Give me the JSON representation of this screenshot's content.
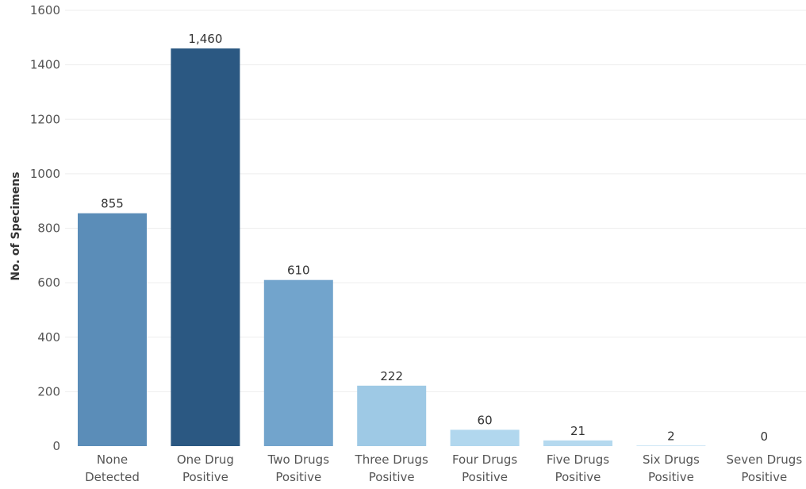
{
  "chart_data": {
    "type": "bar",
    "title": "",
    "xlabel": "",
    "ylabel": "No. of Specimens",
    "ylim": [
      0,
      1600
    ],
    "yticks": [
      0,
      200,
      400,
      600,
      800,
      1000,
      1200,
      1400,
      1600
    ],
    "ytick_labels": [
      "0",
      "200",
      "400",
      "600",
      "800",
      "1000",
      "1200",
      "1400",
      "1600"
    ],
    "grid": true,
    "legend": "none",
    "categories": [
      [
        "None",
        "Detected"
      ],
      [
        "One Drug",
        "Positive"
      ],
      [
        "Two Drugs",
        "Positive"
      ],
      [
        "Three Drugs",
        "Positive"
      ],
      [
        "Four Drugs",
        "Positive"
      ],
      [
        "Five Drugs",
        "Positive"
      ],
      [
        "Six  Drugs",
        "Positive"
      ],
      [
        "Seven Drugs",
        "Positive"
      ]
    ],
    "values": [
      855,
      1460,
      610,
      222,
      60,
      21,
      2,
      0
    ],
    "data_labels": [
      "855",
      "1,460",
      "610",
      "222",
      "60",
      "21",
      "2",
      "0"
    ],
    "colors": [
      "#5b8db8",
      "#2b5882",
      "#72a4cc",
      "#9ec9e5",
      "#b1d7ee",
      "#b5d9ef",
      "#b8dbf0",
      "#bcdef2"
    ]
  }
}
